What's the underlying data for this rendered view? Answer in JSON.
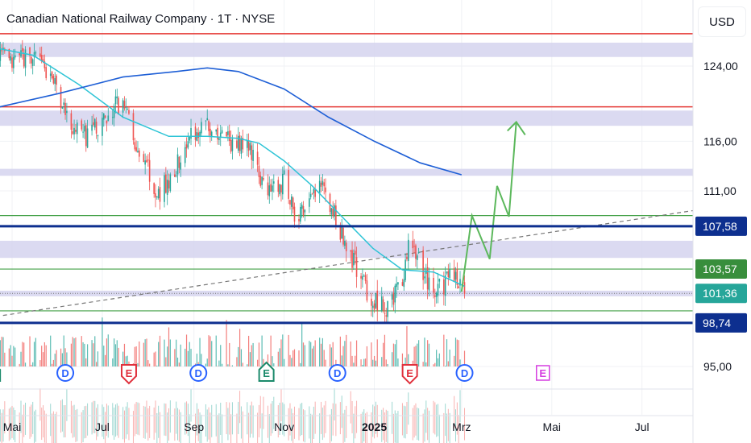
{
  "header": {
    "title": "Canadian National Railway Company · 1T · NYSE",
    "currency_button": "USD"
  },
  "colors": {
    "up": "#26a69a",
    "down": "#ef5350",
    "ma_fast": "#2ec4d6",
    "ma_slow": "#1e5fd6",
    "zone": "#d5d3ee",
    "red_line": "#e53935",
    "green_line": "#43a047",
    "support_blue": "#0d2f8f",
    "projection": "#5cb85c",
    "current_price": "#26a69a"
  },
  "chart_data": {
    "type": "candlestick",
    "title": "Canadian National Railway Company · 1T · NYSE",
    "scale": "log",
    "ylim": [
      93,
      130
    ],
    "x_ticks": [
      {
        "label": "Mai",
        "date": "2024-05-01"
      },
      {
        "label": "Jul",
        "date": "2024-07-01"
      },
      {
        "label": "Sep",
        "date": "2024-09-01"
      },
      {
        "label": "Nov",
        "date": "2024-11-01"
      },
      {
        "label": "2025",
        "date": "2025-01-01",
        "bold": true
      },
      {
        "label": "Mrz",
        "date": "2025-03-01"
      },
      {
        "label": "Mai",
        "date": "2025-05-01"
      },
      {
        "label": "Jul",
        "date": "2025-07-01"
      }
    ],
    "y_ticks": [
      {
        "label": "124,00",
        "value": 124
      },
      {
        "label": "116,00",
        "value": 116
      },
      {
        "label": "111,00",
        "value": 111
      },
      {
        "label": "95,00",
        "value": 95
      }
    ],
    "price_labels": [
      {
        "label": "107,58",
        "value": 107.58,
        "color": "#0d2f8f"
      },
      {
        "label": "103,57",
        "value": 103.57,
        "color": "#388e3c"
      },
      {
        "label": "101,36",
        "value": 101.36,
        "color": "#26a69a"
      },
      {
        "label": "98,74",
        "value": 98.74,
        "color": "#0d2f8f"
      }
    ],
    "price_path": [
      [
        "2024-04-20",
        126
      ],
      [
        "2024-05-01",
        124
      ],
      [
        "2024-05-10",
        125
      ],
      [
        "2024-05-20",
        124.5
      ],
      [
        "2024-06-01",
        121
      ],
      [
        "2024-06-10",
        117.5
      ],
      [
        "2024-06-20",
        116.5
      ],
      [
        "2024-07-01",
        118
      ],
      [
        "2024-07-10",
        120
      ],
      [
        "2024-07-20",
        119
      ],
      [
        "2024-07-25",
        114
      ],
      [
        "2024-08-01",
        113.5
      ],
      [
        "2024-08-06",
        110.5
      ],
      [
        "2024-08-15",
        112
      ],
      [
        "2024-08-25",
        115
      ],
      [
        "2024-09-01",
        117
      ],
      [
        "2024-09-10",
        118
      ],
      [
        "2024-09-15",
        116.5
      ],
      [
        "2024-09-25",
        116
      ],
      [
        "2024-10-10",
        115
      ],
      [
        "2024-10-20",
        111
      ],
      [
        "2024-11-01",
        112
      ],
      [
        "2024-11-05",
        110
      ],
      [
        "2024-11-10",
        108
      ],
      [
        "2024-11-20",
        110
      ],
      [
        "2024-11-25",
        112
      ],
      [
        "2024-12-01",
        110
      ],
      [
        "2024-12-10",
        107
      ],
      [
        "2024-12-20",
        103.5
      ],
      [
        "2024-12-30",
        101
      ],
      [
        "2025-01-10",
        100
      ],
      [
        "2025-01-20",
        102
      ],
      [
        "2025-01-25",
        106.5
      ],
      [
        "2025-02-01",
        104
      ],
      [
        "2025-02-10",
        101
      ],
      [
        "2025-02-20",
        102.5
      ],
      [
        "2025-02-26",
        103
      ],
      [
        "2025-03-03",
        101.36
      ]
    ],
    "ma_fast": [
      [
        "2024-04-20",
        126
      ],
      [
        "2024-05-15",
        125.2
      ],
      [
        "2024-06-15",
        122
      ],
      [
        "2024-07-15",
        118.5
      ],
      [
        "2024-08-15",
        116.5
      ],
      [
        "2024-09-10",
        116.5
      ],
      [
        "2024-10-01",
        116.3
      ],
      [
        "2024-10-15",
        115.8
      ],
      [
        "2024-11-01",
        114
      ],
      [
        "2024-11-20",
        111.5
      ],
      [
        "2024-12-10",
        108.5
      ],
      [
        "2024-12-31",
        105.5
      ],
      [
        "2025-01-20",
        103.5
      ],
      [
        "2025-02-10",
        103.3
      ],
      [
        "2025-03-03",
        102
      ]
    ],
    "ma_slow": [
      [
        "2024-04-20",
        119.5
      ],
      [
        "2024-06-01",
        121
      ],
      [
        "2024-07-15",
        122.8
      ],
      [
        "2024-08-20",
        123.4
      ],
      [
        "2024-09-10",
        123.8
      ],
      [
        "2024-10-01",
        123.4
      ],
      [
        "2024-11-01",
        121.5
      ],
      [
        "2024-12-01",
        118.5
      ],
      [
        "2025-01-01",
        116
      ],
      [
        "2025-02-01",
        113.8
      ],
      [
        "2025-03-01",
        112.6
      ]
    ],
    "zones": [
      [
        125,
        126.6
      ],
      [
        117.6,
        119.2
      ],
      [
        112.5,
        113.2
      ],
      [
        104.6,
        106.2
      ],
      [
        101.1,
        101.6
      ]
    ],
    "red_lines": [
      127.6,
      119.6
    ],
    "green_lines": [
      108.6,
      103.57,
      99.8
    ],
    "blue_lines": [
      107.58,
      98.74
    ],
    "trendline": {
      "from": [
        "2024-04-20",
        99.3
      ],
      "to": [
        "2025-08-10",
        109.2
      ]
    },
    "projection": [
      [
        "2025-03-01",
        101.5
      ],
      [
        "2025-03-08",
        108.6
      ],
      [
        "2025-03-20",
        104.5
      ],
      [
        "2025-03-25",
        111.5
      ],
      [
        "2025-04-02",
        108.5
      ],
      [
        "2025-04-07",
        118
      ]
    ],
    "events": [
      {
        "label": "E",
        "date": "2024-04-18",
        "kind": "earnings-beat",
        "color": "#1b8a6b"
      },
      {
        "label": "D",
        "date": "2024-06-06",
        "kind": "dividend",
        "color": "#2962ff"
      },
      {
        "label": "E",
        "date": "2024-07-19",
        "kind": "earnings-miss",
        "color": "#e0303c"
      },
      {
        "label": "D",
        "date": "2024-09-04",
        "kind": "dividend",
        "color": "#2962ff"
      },
      {
        "label": "E",
        "date": "2024-10-20",
        "kind": "earnings-beat",
        "color": "#1b8a6b"
      },
      {
        "label": "D",
        "date": "2024-12-07",
        "kind": "dividend",
        "color": "#2962ff"
      },
      {
        "label": "E",
        "date": "2025-01-25",
        "kind": "earnings-miss",
        "color": "#e0303c"
      },
      {
        "label": "D",
        "date": "2025-03-03",
        "kind": "dividend",
        "color": "#2962ff"
      },
      {
        "label": "E",
        "date": "2025-04-25",
        "kind": "earnings-upcoming",
        "color": "#d63fe0"
      }
    ]
  }
}
